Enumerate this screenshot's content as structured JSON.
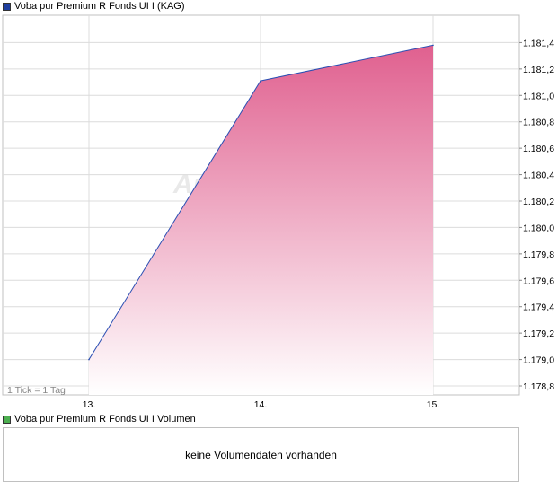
{
  "legend": {
    "price_label": "Voba pur Premium R Fonds UI I (KAG)",
    "price_color": "#1f3f9f",
    "volume_label": "Voba pur Premium R Fonds UI I Volumen",
    "volume_color": "#4caf50"
  },
  "tick_info": "1 Tick = 1 Tag",
  "watermark": "Ariva",
  "volume": {
    "message": "keine Volumendaten vorhanden"
  },
  "chart_data": {
    "type": "area",
    "categories": [
      "13.",
      "14.",
      "15."
    ],
    "values": [
      1179.0,
      1181.11,
      1181.38
    ],
    "ylim": [
      1178.8,
      1181.6
    ],
    "yticks": [
      {
        "value": 1178.8,
        "label": "1.178,8"
      },
      {
        "value": 1179.0,
        "label": "1.179,0"
      },
      {
        "value": 1179.2,
        "label": "1.179,2"
      },
      {
        "value": 1179.4,
        "label": "1.179,4"
      },
      {
        "value": 1179.6,
        "label": "1.179,6"
      },
      {
        "value": 1179.8,
        "label": "1.179,8"
      },
      {
        "value": 1180.0,
        "label": "1.180,0"
      },
      {
        "value": 1180.2,
        "label": "1.180,2"
      },
      {
        "value": 1180.4,
        "label": "1.180,4"
      },
      {
        "value": 1180.6,
        "label": "1.180,6"
      },
      {
        "value": 1180.8,
        "label": "1.180,8"
      },
      {
        "value": 1181.0,
        "label": "1.181,0"
      },
      {
        "value": 1181.2,
        "label": "1.181,2"
      },
      {
        "value": 1181.4,
        "label": "1.181,4"
      }
    ],
    "grid": true,
    "line_color": "#2b4fb3",
    "fill_top_color": "#e0608f",
    "fill_bottom_color": "#ffffff"
  }
}
